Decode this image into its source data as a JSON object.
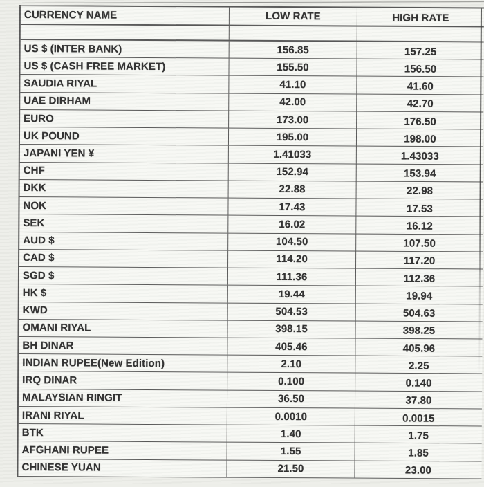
{
  "page": {
    "kind": "scanned currency exchange rate sheet",
    "colors": {
      "page_bg": "#edeee9",
      "cell_bg": "#f7f8f4",
      "line": "#3a3a3a",
      "text": "#2d2d2d"
    }
  },
  "table": {
    "headers": {
      "currency": "CURRENCY NAME",
      "low": "LOW RATE",
      "high": "HIGH RATE"
    },
    "rows": [
      {
        "name": "US $ (INTER BANK)",
        "low": "156.85",
        "high": "157.25"
      },
      {
        "name": "US $ (CASH FREE MARKET)",
        "low": "155.50",
        "high": "156.50"
      },
      {
        "name": "SAUDIA RIYAL",
        "low": "41.10",
        "high": "41.60"
      },
      {
        "name": "UAE DIRHAM",
        "low": "42.00",
        "high": "42.70"
      },
      {
        "name": "EURO",
        "low": "173.00",
        "high": "176.50"
      },
      {
        "name": "UK POUND",
        "low": "195.00",
        "high": "198.00"
      },
      {
        "name": "JAPANI YEN ¥",
        "low": "1.41033",
        "high": "1.43033"
      },
      {
        "name": "CHF",
        "low": "152.94",
        "high": "153.94"
      },
      {
        "name": "DKK",
        "low": "22.88",
        "high": "22.98"
      },
      {
        "name": "NOK",
        "low": "17.43",
        "high": "17.53"
      },
      {
        "name": "SEK",
        "low": "16.02",
        "high": "16.12"
      },
      {
        "name": "AUD $",
        "low": "104.50",
        "high": "107.50"
      },
      {
        "name": "CAD $",
        "low": "114.20",
        "high": "117.20"
      },
      {
        "name": "SGD $",
        "low": "111.36",
        "high": "112.36"
      },
      {
        "name": "HK $",
        "low": "19.44",
        "high": "19.94"
      },
      {
        "name": "KWD",
        "low": "504.53",
        "high": "504.63"
      },
      {
        "name": "OMANI RIYAL",
        "low": "398.15",
        "high": "398.25"
      },
      {
        "name": "BH DINAR",
        "low": "405.46",
        "high": "405.96"
      },
      {
        "name": "INDIAN RUPEE(New Edition)",
        "low": "2.10",
        "high": "2.25"
      },
      {
        "name": "IRQ DINAR",
        "low": "0.100",
        "high": "0.140"
      },
      {
        "name": "MALAYSIAN RINGIT",
        "low": "36.50",
        "high": "37.80"
      },
      {
        "name": "IRANI RIYAL",
        "low": "0.0010",
        "high": "0.0015"
      },
      {
        "name": "BTK",
        "low": "1.40",
        "high": "1.75"
      },
      {
        "name": "AFGHANI RUPEE",
        "low": "1.55",
        "high": "1.85"
      },
      {
        "name": "CHINESE YUAN",
        "low": "21.50",
        "high": "23.00"
      }
    ]
  }
}
